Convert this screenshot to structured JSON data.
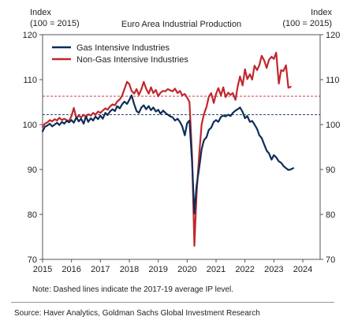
{
  "chart_data": {
    "type": "line",
    "title": "Euro Area Industrial Production",
    "ylabel_left": [
      "Index",
      "(100 = 2015)"
    ],
    "ylabel_right": [
      "Index",
      "(100 = 2015)"
    ],
    "xlim": [
      2015,
      2024.6
    ],
    "ylim": [
      70,
      120
    ],
    "x_ticks": [
      2015,
      2016,
      2017,
      2018,
      2019,
      2020,
      2021,
      2022,
      2023,
      2024
    ],
    "y_ticks": [
      70,
      80,
      90,
      100,
      110,
      120
    ],
    "grid": false,
    "legend_position": "top-left",
    "reference_lines": [
      {
        "series": "Gas Intensive Industries",
        "value": 102.2,
        "style": "dashed"
      },
      {
        "series": "Non-Gas Intensive Industries",
        "value": 106.3,
        "style": "dashed"
      }
    ],
    "series": [
      {
        "name": "Gas Intensive Industries",
        "color": "#0f2d57",
        "points": [
          [
            2015.0,
            98.5
          ],
          [
            2015.08,
            99.5
          ],
          [
            2015.17,
            99.8
          ],
          [
            2015.25,
            100.2
          ],
          [
            2015.33,
            99.6
          ],
          [
            2015.42,
            100.0
          ],
          [
            2015.5,
            100.4
          ],
          [
            2015.58,
            99.9
          ],
          [
            2015.67,
            100.6
          ],
          [
            2015.75,
            100.2
          ],
          [
            2015.83,
            100.8
          ],
          [
            2015.92,
            100.5
          ],
          [
            2016.0,
            101.0
          ],
          [
            2016.08,
            100.4
          ],
          [
            2016.17,
            101.6
          ],
          [
            2016.25,
            100.7
          ],
          [
            2016.33,
            101.3
          ],
          [
            2016.42,
            100.2
          ],
          [
            2016.5,
            101.8
          ],
          [
            2016.58,
            100.6
          ],
          [
            2016.67,
            101.4
          ],
          [
            2016.75,
            100.9
          ],
          [
            2016.83,
            101.8
          ],
          [
            2016.92,
            101.2
          ],
          [
            2017.0,
            102.0
          ],
          [
            2017.08,
            101.3
          ],
          [
            2017.17,
            102.6
          ],
          [
            2017.25,
            102.1
          ],
          [
            2017.33,
            102.9
          ],
          [
            2017.42,
            103.4
          ],
          [
            2017.5,
            103.0
          ],
          [
            2017.58,
            104.1
          ],
          [
            2017.67,
            103.6
          ],
          [
            2017.75,
            104.5
          ],
          [
            2017.83,
            105.1
          ],
          [
            2017.92,
            104.6
          ],
          [
            2018.0,
            105.5
          ],
          [
            2018.08,
            106.5
          ],
          [
            2018.17,
            104.5
          ],
          [
            2018.25,
            103.0
          ],
          [
            2018.33,
            102.6
          ],
          [
            2018.42,
            103.8
          ],
          [
            2018.5,
            104.3
          ],
          [
            2018.58,
            103.4
          ],
          [
            2018.67,
            104.1
          ],
          [
            2018.75,
            103.2
          ],
          [
            2018.83,
            103.8
          ],
          [
            2018.92,
            102.9
          ],
          [
            2019.0,
            103.3
          ],
          [
            2019.08,
            102.4
          ],
          [
            2019.17,
            103.1
          ],
          [
            2019.25,
            102.6
          ],
          [
            2019.33,
            102.2
          ],
          [
            2019.42,
            101.8
          ],
          [
            2019.5,
            101.6
          ],
          [
            2019.58,
            100.9
          ],
          [
            2019.67,
            101.3
          ],
          [
            2019.75,
            100.6
          ],
          [
            2019.83,
            99.6
          ],
          [
            2019.92,
            97.6
          ],
          [
            2020.0,
            100.3
          ],
          [
            2020.08,
            100.9
          ],
          [
            2020.17,
            91.5
          ],
          [
            2020.25,
            80.2
          ],
          [
            2020.33,
            86.5
          ],
          [
            2020.42,
            90.5
          ],
          [
            2020.5,
            94.5
          ],
          [
            2020.58,
            96.5
          ],
          [
            2020.67,
            97.2
          ],
          [
            2020.75,
            98.8
          ],
          [
            2020.83,
            99.3
          ],
          [
            2020.92,
            100.6
          ],
          [
            2021.0,
            101.0
          ],
          [
            2021.08,
            100.6
          ],
          [
            2021.17,
            101.7
          ],
          [
            2021.25,
            102.0
          ],
          [
            2021.33,
            101.8
          ],
          [
            2021.42,
            102.2
          ],
          [
            2021.5,
            101.9
          ],
          [
            2021.58,
            102.6
          ],
          [
            2021.67,
            103.1
          ],
          [
            2021.75,
            103.4
          ],
          [
            2021.83,
            103.8
          ],
          [
            2021.92,
            102.8
          ],
          [
            2022.0,
            101.4
          ],
          [
            2022.08,
            101.9
          ],
          [
            2022.17,
            100.6
          ],
          [
            2022.25,
            100.8
          ],
          [
            2022.33,
            100.0
          ],
          [
            2022.42,
            99.0
          ],
          [
            2022.5,
            97.6
          ],
          [
            2022.58,
            97.0
          ],
          [
            2022.67,
            95.5
          ],
          [
            2022.75,
            94.2
          ],
          [
            2022.83,
            93.6
          ],
          [
            2022.92,
            92.2
          ],
          [
            2023.0,
            93.2
          ],
          [
            2023.08,
            92.7
          ],
          [
            2023.17,
            91.8
          ],
          [
            2023.25,
            91.5
          ],
          [
            2023.33,
            90.8
          ],
          [
            2023.42,
            90.3
          ],
          [
            2023.5,
            89.9
          ],
          [
            2023.58,
            90.0
          ],
          [
            2023.67,
            90.3
          ]
        ]
      },
      {
        "name": "Non-Gas Intensive Industries",
        "color": "#c0282d",
        "points": [
          [
            2015.0,
            99.5
          ],
          [
            2015.08,
            100.2
          ],
          [
            2015.17,
            100.5
          ],
          [
            2015.25,
            101.0
          ],
          [
            2015.33,
            100.7
          ],
          [
            2015.42,
            101.2
          ],
          [
            2015.5,
            100.9
          ],
          [
            2015.58,
            101.5
          ],
          [
            2015.67,
            101.0
          ],
          [
            2015.75,
            101.3
          ],
          [
            2015.83,
            101.0
          ],
          [
            2015.92,
            100.8
          ],
          [
            2016.0,
            101.9
          ],
          [
            2016.08,
            103.7
          ],
          [
            2016.17,
            101.4
          ],
          [
            2016.25,
            102.0
          ],
          [
            2016.33,
            101.6
          ],
          [
            2016.42,
            102.2
          ],
          [
            2016.5,
            101.7
          ],
          [
            2016.58,
            102.3
          ],
          [
            2016.67,
            102.0
          ],
          [
            2016.75,
            102.6
          ],
          [
            2016.83,
            102.2
          ],
          [
            2016.92,
            102.9
          ],
          [
            2017.0,
            102.6
          ],
          [
            2017.08,
            103.1
          ],
          [
            2017.17,
            103.6
          ],
          [
            2017.25,
            103.3
          ],
          [
            2017.33,
            104.0
          ],
          [
            2017.42,
            104.5
          ],
          [
            2017.5,
            104.3
          ],
          [
            2017.58,
            105.1
          ],
          [
            2017.67,
            105.6
          ],
          [
            2017.75,
            106.4
          ],
          [
            2017.83,
            107.9
          ],
          [
            2017.92,
            109.5
          ],
          [
            2018.0,
            109.0
          ],
          [
            2018.08,
            107.5
          ],
          [
            2018.17,
            106.9
          ],
          [
            2018.25,
            107.9
          ],
          [
            2018.33,
            106.6
          ],
          [
            2018.42,
            107.9
          ],
          [
            2018.5,
            109.5
          ],
          [
            2018.58,
            108.0
          ],
          [
            2018.67,
            106.9
          ],
          [
            2018.75,
            108.3
          ],
          [
            2018.83,
            107.0
          ],
          [
            2018.92,
            107.7
          ],
          [
            2019.0,
            106.3
          ],
          [
            2019.08,
            107.1
          ],
          [
            2019.17,
            107.5
          ],
          [
            2019.25,
            107.4
          ],
          [
            2019.33,
            107.9
          ],
          [
            2019.42,
            107.6
          ],
          [
            2019.5,
            107.4
          ],
          [
            2019.58,
            108.0
          ],
          [
            2019.67,
            107.0
          ],
          [
            2019.75,
            107.5
          ],
          [
            2019.83,
            106.5
          ],
          [
            2019.92,
            106.8
          ],
          [
            2020.0,
            106.0
          ],
          [
            2020.08,
            105.0
          ],
          [
            2020.17,
            93.0
          ],
          [
            2020.25,
            73.0
          ],
          [
            2020.33,
            85.0
          ],
          [
            2020.42,
            93.5
          ],
          [
            2020.5,
            100.0
          ],
          [
            2020.58,
            102.3
          ],
          [
            2020.67,
            103.9
          ],
          [
            2020.75,
            106.2
          ],
          [
            2020.83,
            107.0
          ],
          [
            2020.92,
            104.8
          ],
          [
            2021.0,
            106.8
          ],
          [
            2021.08,
            108.1
          ],
          [
            2021.17,
            106.5
          ],
          [
            2021.25,
            108.3
          ],
          [
            2021.33,
            106.1
          ],
          [
            2021.42,
            107.1
          ],
          [
            2021.5,
            106.6
          ],
          [
            2021.58,
            107.0
          ],
          [
            2021.67,
            105.5
          ],
          [
            2021.75,
            108.5
          ],
          [
            2021.83,
            110.7
          ],
          [
            2021.92,
            108.7
          ],
          [
            2022.0,
            112.3
          ],
          [
            2022.08,
            110.1
          ],
          [
            2022.17,
            111.2
          ],
          [
            2022.25,
            110.0
          ],
          [
            2022.33,
            113.1
          ],
          [
            2022.42,
            112.1
          ],
          [
            2022.5,
            113.3
          ],
          [
            2022.58,
            115.3
          ],
          [
            2022.67,
            114.2
          ],
          [
            2022.75,
            112.6
          ],
          [
            2022.83,
            114.4
          ],
          [
            2022.92,
            115.1
          ],
          [
            2023.0,
            114.6
          ],
          [
            2023.08,
            116.0
          ],
          [
            2023.17,
            109.1
          ],
          [
            2023.25,
            112.1
          ],
          [
            2023.33,
            111.9
          ],
          [
            2023.42,
            113.2
          ],
          [
            2023.5,
            108.2
          ],
          [
            2023.58,
            108.4
          ]
        ]
      }
    ]
  },
  "note": "Note: Dashed lines indicate the 2017-19 average IP level.",
  "source": "Source: Haver Analytics, Goldman Sachs Global Investment Research"
}
